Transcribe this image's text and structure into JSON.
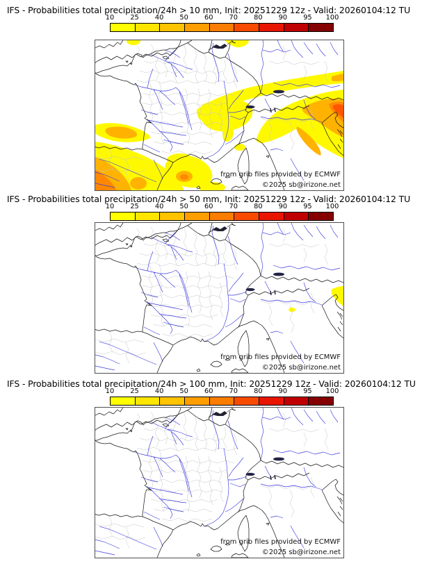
{
  "colorbar": {
    "unit": "probability",
    "ticks": [
      "10",
      "25",
      "40",
      "50",
      "60",
      "70",
      "80",
      "90",
      "95",
      "100"
    ],
    "colors": [
      "#ffff00",
      "#ffe600",
      "#ffc300",
      "#ff9e00",
      "#fb7d00",
      "#f84b00",
      "#e81500",
      "#c00000",
      "#850000"
    ]
  },
  "panels": [
    {
      "title": "IFS - Probabilities total precipitation/24h > 10 mm, Init: 20251229 12z - Valid: 20260104:12 TU",
      "threshold_mm": 10,
      "attribution": "from grib files provided by ECMWF",
      "copyright": "©2025 sb@irizone.net",
      "shading_summary": "Yellow/orange probability shading over SW France-N Spain, Languedoc, a band from Massif Central to NE, Belgium, and N Italy/Adriatic with orange-red cores"
    },
    {
      "title": "IFS - Probabilities total precipitation/24h > 50 mm, Init: 20251229 12z - Valid: 20260104:12 TU",
      "threshold_mm": 50,
      "attribution": "from grib files provided by ECMWF",
      "copyright": "©2025 sb@irizone.net",
      "shading_summary": "Small yellow area at far right edge (NE Adriatic) and tiny spot near Liguria"
    },
    {
      "title": "IFS - Probabilities total precipitation/24h > 100 mm, Init: 20251229 12z - Valid: 20260104:12 TU",
      "threshold_mm": 100,
      "attribution": "from grib files provided by ECMWF",
      "copyright": "©2025 sb@irizone.net",
      "shading_summary": "No shaded areas"
    }
  ],
  "map_colors": {
    "coastline": "#1a1a1a",
    "rivers": "#3a3ae0",
    "department_borders": "#c4c4c4",
    "frame": "#4d4d4d",
    "prob_yellow": "#fff900",
    "prob_orange": "#ffb300",
    "prob_deep_orange": "#ff8800",
    "prob_red_orange": "#ff5500"
  }
}
